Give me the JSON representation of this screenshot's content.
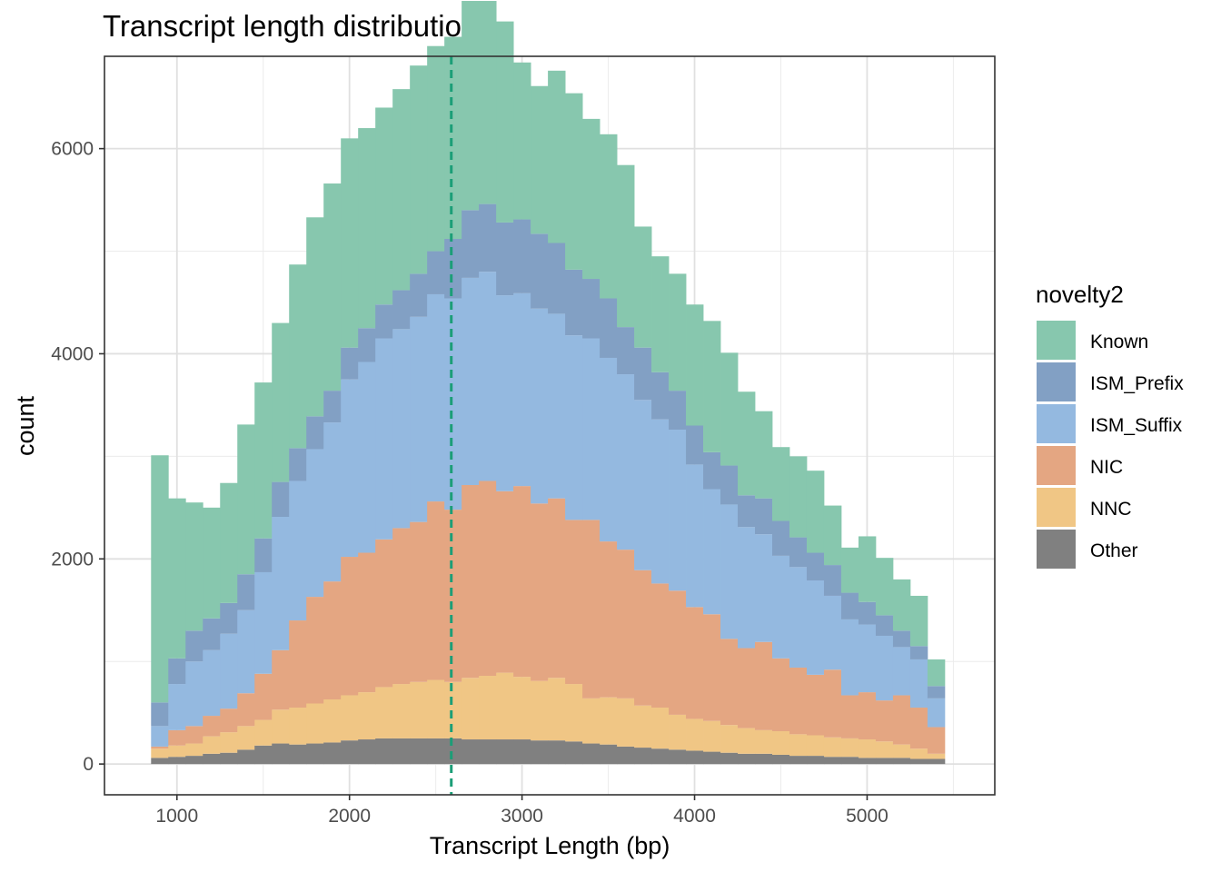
{
  "chart_data": {
    "type": "bar",
    "subtype": "stacked-histogram",
    "title": "Transcript length distribution",
    "xlabel": "Transcript Length (bp)",
    "ylabel": "count",
    "xlim": [
      580,
      5740
    ],
    "ylim": [
      -300,
      6900
    ],
    "x_ticks": [
      1000,
      2000,
      3000,
      4000,
      5000
    ],
    "y_ticks": [
      0,
      2000,
      4000,
      6000
    ],
    "grid": true,
    "legend": {
      "title": "novelty2",
      "position": "right"
    },
    "bin_start": 850,
    "bin_width": 100,
    "median_line": {
      "x": 2590,
      "color": "#1b9e77",
      "style": "dashed"
    },
    "series": [
      {
        "name": "Other",
        "color": "#808080",
        "values": [
          60,
          70,
          80,
          100,
          110,
          140,
          180,
          200,
          190,
          200,
          210,
          230,
          240,
          250,
          250,
          250,
          250,
          250,
          240,
          240,
          240,
          240,
          230,
          230,
          220,
          200,
          190,
          170,
          160,
          150,
          140,
          130,
          120,
          110,
          100,
          100,
          90,
          80,
          80,
          70,
          70,
          60,
          60,
          60,
          50,
          50
        ]
      },
      {
        "name": "NNC",
        "color": "#f0c685",
        "values": [
          90,
          110,
          120,
          170,
          200,
          230,
          250,
          330,
          360,
          390,
          420,
          440,
          460,
          500,
          530,
          550,
          570,
          550,
          600,
          620,
          650,
          610,
          580,
          610,
          560,
          440,
          460,
          470,
          410,
          400,
          340,
          310,
          300,
          270,
          250,
          230,
          230,
          210,
          200,
          190,
          180,
          180,
          160,
          130,
          100,
          50
        ]
      },
      {
        "name": "NIC",
        "color": "#e4a682",
        "values": [
          20,
          150,
          170,
          200,
          230,
          320,
          450,
          580,
          850,
          1040,
          1150,
          1350,
          1360,
          1440,
          1520,
          1560,
          1740,
          1680,
          1880,
          1900,
          1770,
          1860,
          1730,
          1750,
          1600,
          1740,
          1520,
          1450,
          1320,
          1210,
          1210,
          1090,
          1040,
          840,
          780,
          860,
          710,
          650,
          590,
          660,
          420,
          460,
          400,
          480,
          400,
          260
        ]
      },
      {
        "name": "ISM_Suffix",
        "color": "#94b9e0",
        "values": [
          200,
          450,
          630,
          640,
          730,
          810,
          990,
          1300,
          1360,
          1440,
          1550,
          1730,
          1860,
          1960,
          1940,
          2000,
          2020,
          2060,
          2020,
          2040,
          1910,
          1880,
          1900,
          1800,
          1800,
          1770,
          1790,
          1710,
          1660,
          1600,
          1570,
          1390,
          1220,
          1310,
          1180,
          1050,
          1000,
          980,
          920,
          720,
          740,
          660,
          630,
          470,
          470,
          280
        ]
      },
      {
        "name": "ISM_Prefix",
        "color": "#82a0c4",
        "values": [
          230,
          250,
          300,
          310,
          300,
          350,
          330,
          340,
          320,
          320,
          310,
          310,
          330,
          330,
          380,
          420,
          420,
          580,
          660,
          660,
          710,
          720,
          730,
          690,
          640,
          580,
          580,
          460,
          510,
          460,
          380,
          380,
          360,
          380,
          310,
          350,
          340,
          290,
          270,
          300,
          260,
          220,
          200,
          160,
          130,
          120
        ]
      },
      {
        "name": "Known",
        "color": "#87c7ae",
        "values": [
          2410,
          1560,
          1250,
          1080,
          1170,
          1460,
          1520,
          1550,
          1790,
          1940,
          2020,
          2040,
          1950,
          1920,
          1960,
          2030,
          2000,
          1970,
          2040,
          1980,
          1960,
          1530,
          1440,
          1680,
          1720,
          1560,
          1600,
          1580,
          1180,
          1130,
          1140,
          1180,
          1280,
          1100,
          1010,
          850,
          720,
          790,
          800,
          580,
          440,
          640,
          560,
          500,
          490,
          260
        ]
      }
    ]
  }
}
